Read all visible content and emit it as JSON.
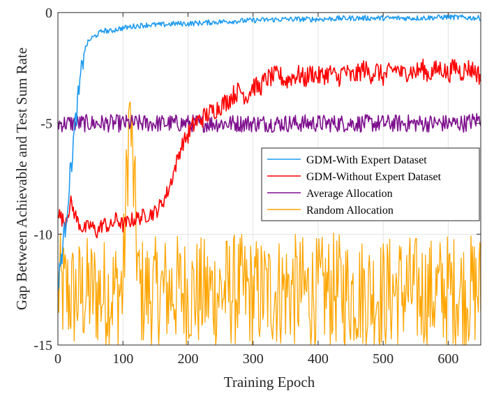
{
  "chart_data": {
    "type": "line",
    "title": "",
    "xlabel": "Training Epoch",
    "ylabel": "Gap Between Achievable and Test Sum Rate",
    "xlim": [
      0,
      650
    ],
    "ylim": [
      -15,
      0
    ],
    "xticks": [
      "0",
      "100",
      "200",
      "300",
      "400",
      "500",
      "600"
    ],
    "yticks": [
      "0",
      "-5",
      "-10",
      "-15"
    ],
    "grid": true,
    "legend_position": "center-right",
    "series": [
      {
        "name": "GDM-With Expert Dataset",
        "color": "#1e9bf0",
        "points": [
          [
            0,
            -12.6
          ],
          [
            5,
            -11.0
          ],
          [
            10,
            -10.0
          ],
          [
            15,
            -8.5
          ],
          [
            20,
            -7.0
          ],
          [
            25,
            -5.5
          ],
          [
            30,
            -4.2
          ],
          [
            35,
            -3.0
          ],
          [
            40,
            -1.8
          ],
          [
            45,
            -1.4
          ],
          [
            50,
            -1.2
          ],
          [
            60,
            -1.0
          ],
          [
            70,
            -0.8
          ],
          [
            80,
            -0.85
          ],
          [
            90,
            -0.75
          ],
          [
            100,
            -0.7
          ],
          [
            120,
            -0.6
          ],
          [
            140,
            -0.55
          ],
          [
            160,
            -0.55
          ],
          [
            180,
            -0.5
          ],
          [
            200,
            -0.5
          ],
          [
            230,
            -0.45
          ],
          [
            260,
            -0.4
          ],
          [
            300,
            -0.35
          ],
          [
            350,
            -0.3
          ],
          [
            400,
            -0.3
          ],
          [
            450,
            -0.25
          ],
          [
            500,
            -0.25
          ],
          [
            550,
            -0.25
          ],
          [
            600,
            -0.2
          ],
          [
            650,
            -0.25
          ]
        ]
      },
      {
        "name": "GDM-Without Expert Dataset",
        "color": "#ff0000",
        "points": [
          [
            0,
            -9.0
          ],
          [
            10,
            -9.5
          ],
          [
            20,
            -8.6
          ],
          [
            30,
            -9.4
          ],
          [
            40,
            -9.8
          ],
          [
            50,
            -9.6
          ],
          [
            60,
            -9.9
          ],
          [
            70,
            -9.5
          ],
          [
            80,
            -9.7
          ],
          [
            90,
            -9.3
          ],
          [
            100,
            -9.6
          ],
          [
            110,
            -9.4
          ],
          [
            120,
            -9.3
          ],
          [
            130,
            -9.2
          ],
          [
            140,
            -9.1
          ],
          [
            150,
            -9.0
          ],
          [
            160,
            -8.6
          ],
          [
            170,
            -8.0
          ],
          [
            180,
            -7.0
          ],
          [
            190,
            -6.0
          ],
          [
            200,
            -5.5
          ],
          [
            210,
            -5.0
          ],
          [
            220,
            -4.8
          ],
          [
            230,
            -4.6
          ],
          [
            240,
            -4.4
          ],
          [
            250,
            -4.2
          ],
          [
            260,
            -4.0
          ],
          [
            270,
            -3.7
          ],
          [
            280,
            -3.5
          ],
          [
            290,
            -3.8
          ],
          [
            300,
            -3.3
          ],
          [
            310,
            -3.4
          ],
          [
            320,
            -3.0
          ],
          [
            330,
            -2.9
          ],
          [
            340,
            -2.8
          ],
          [
            350,
            -3.1
          ],
          [
            360,
            -2.9
          ],
          [
            370,
            -2.8
          ],
          [
            380,
            -3.0
          ],
          [
            390,
            -2.7
          ],
          [
            400,
            -2.9
          ],
          [
            410,
            -2.8
          ],
          [
            420,
            -2.7
          ],
          [
            430,
            -3.0
          ],
          [
            440,
            -2.6
          ],
          [
            450,
            -2.9
          ],
          [
            460,
            -2.8
          ],
          [
            470,
            -2.5
          ],
          [
            480,
            -2.8
          ],
          [
            490,
            -2.6
          ],
          [
            500,
            -2.9
          ],
          [
            510,
            -2.7
          ],
          [
            520,
            -2.5
          ],
          [
            530,
            -2.8
          ],
          [
            540,
            -2.6
          ],
          [
            550,
            -2.7
          ],
          [
            560,
            -2.5
          ],
          [
            570,
            -2.8
          ],
          [
            580,
            -2.6
          ],
          [
            590,
            -2.5
          ],
          [
            600,
            -2.8
          ],
          [
            610,
            -2.4
          ],
          [
            620,
            -2.7
          ],
          [
            630,
            -2.5
          ],
          [
            640,
            -2.6
          ],
          [
            650,
            -2.9
          ]
        ]
      },
      {
        "name": "Average Allocation",
        "color": "#7e0f8e",
        "points": [
          [
            0,
            -5.0
          ],
          [
            25,
            -5.0
          ],
          [
            50,
            -5.0
          ],
          [
            75,
            -5.0
          ],
          [
            100,
            -5.0
          ],
          [
            125,
            -5.0
          ],
          [
            150,
            -5.0
          ],
          [
            175,
            -5.0
          ],
          [
            200,
            -5.0
          ],
          [
            225,
            -5.0
          ],
          [
            250,
            -5.0
          ],
          [
            275,
            -5.0
          ],
          [
            300,
            -5.0
          ],
          [
            325,
            -5.0
          ],
          [
            350,
            -5.0
          ],
          [
            375,
            -5.0
          ],
          [
            400,
            -5.0
          ],
          [
            425,
            -5.0
          ],
          [
            450,
            -5.0
          ],
          [
            475,
            -5.0
          ],
          [
            500,
            -5.0
          ],
          [
            525,
            -5.0
          ],
          [
            550,
            -5.0
          ],
          [
            575,
            -5.0
          ],
          [
            600,
            -5.0
          ],
          [
            625,
            -5.0
          ],
          [
            650,
            -4.8
          ]
        ]
      },
      {
        "name": "Random Allocation",
        "color": "#ffa500",
        "points": [
          [
            0,
            -12.5
          ],
          [
            25,
            -12.8
          ],
          [
            50,
            -12.6
          ],
          [
            75,
            -12.7
          ],
          [
            100,
            -12.5
          ],
          [
            110,
            -4.1
          ],
          [
            125,
            -12.6
          ],
          [
            150,
            -12.7
          ],
          [
            175,
            -12.5
          ],
          [
            200,
            -12.6
          ],
          [
            225,
            -12.7
          ],
          [
            250,
            -12.6
          ],
          [
            275,
            -12.5
          ],
          [
            300,
            -12.7
          ],
          [
            325,
            -12.6
          ],
          [
            350,
            -12.5
          ],
          [
            375,
            -12.6
          ],
          [
            400,
            -12.7
          ],
          [
            425,
            -12.5
          ],
          [
            450,
            -12.6
          ],
          [
            475,
            -12.6
          ],
          [
            500,
            -12.7
          ],
          [
            525,
            -12.5
          ],
          [
            550,
            -12.6
          ],
          [
            575,
            -12.7
          ],
          [
            600,
            -12.5
          ],
          [
            625,
            -12.6
          ],
          [
            650,
            -12.5
          ]
        ]
      }
    ]
  }
}
